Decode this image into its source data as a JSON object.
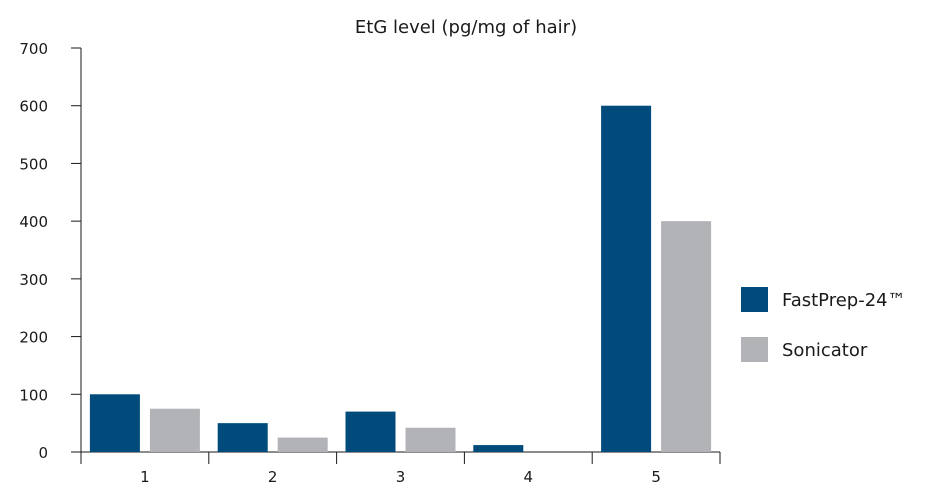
{
  "chart_data": {
    "type": "bar",
    "title": "EtG level (pg/mg of hair)",
    "xlabel": "",
    "ylabel": "",
    "categories": [
      "1",
      "2",
      "3",
      "4",
      "5"
    ],
    "ylim": [
      0,
      700
    ],
    "yticks": [
      0,
      100,
      200,
      300,
      400,
      500,
      600,
      700
    ],
    "grid": false,
    "legend_position": "right",
    "series": [
      {
        "name": "FastPrep-24™",
        "color": "#004a7c",
        "values": [
          100,
          50,
          70,
          12,
          600
        ]
      },
      {
        "name": "Sonicator",
        "color": "#b1b3b6",
        "values": [
          75,
          25,
          42,
          0,
          400
        ]
      }
    ]
  }
}
